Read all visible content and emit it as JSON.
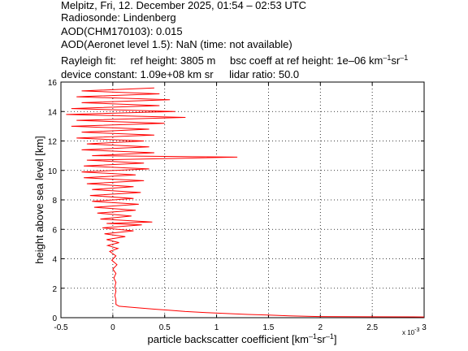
{
  "header": {
    "line1": "Melpitz, Fri, 12. December 2025, 01:54 – 02:53 UTC",
    "line2": "Radiosonde: Lindenberg",
    "line3": "AOD(CHM170103): 0.015",
    "line4": "AOD(Aeronet level 1.5): NaN   (time: not available)",
    "rayleigh_label": "Rayleigh fit:",
    "ref_height": "ref height: 3805 m",
    "bsc_coeff_prefix": "bsc coeff at ref height: 1e–06 km",
    "bsc_unit_sup1": "–1",
    "bsc_unit_mid": "sr",
    "bsc_unit_sup2": "–1",
    "device_constant": "device constant: 1.09e+08 km sr",
    "lidar_ratio": "lidar ratio: 50.0"
  },
  "chart_data": {
    "type": "line",
    "xlabel_main": "particle backscatter coefficient [km",
    "xlabel_sup1": "–1",
    "xlabel_mid": "sr",
    "xlabel_sup2": "–1",
    "xlabel_end": "]",
    "ylabel": "height above sea level [km]",
    "x_multiplier": "x 10",
    "x_multiplier_exp": "-3",
    "xlim": [
      -0.5,
      3
    ],
    "ylim": [
      0,
      16
    ],
    "x_tick_labels": [
      "-0.5",
      "0",
      "0.5",
      "1",
      "1.5",
      "2",
      "2.5",
      "3"
    ],
    "y_tick_labels": [
      "0",
      "2",
      "4",
      "6",
      "8",
      "10",
      "12",
      "14",
      "16"
    ],
    "grid": true,
    "series": [
      {
        "color": "#ff0000",
        "units": "x in 1e-3 km^-1 sr^-1, y in km",
        "points": [
          [
            3.0,
            0.05
          ],
          [
            2.5,
            0.06
          ],
          [
            2.0,
            0.08
          ],
          [
            1.7,
            0.12
          ],
          [
            1.5,
            0.18
          ],
          [
            1.3,
            0.22
          ],
          [
            1.1,
            0.28
          ],
          [
            0.9,
            0.34
          ],
          [
            0.7,
            0.42
          ],
          [
            0.55,
            0.5
          ],
          [
            0.4,
            0.58
          ],
          [
            0.28,
            0.65
          ],
          [
            0.15,
            0.72
          ],
          [
            0.06,
            0.78
          ],
          [
            0.03,
            0.9
          ],
          [
            0.03,
            1.2
          ],
          [
            0.02,
            1.5
          ],
          [
            0.03,
            1.8
          ],
          [
            0.02,
            2.1
          ],
          [
            0.03,
            2.4
          ],
          [
            0.01,
            2.7
          ],
          [
            0.03,
            3.0
          ],
          [
            0.0,
            3.3
          ],
          [
            0.04,
            3.6
          ],
          [
            -0.01,
            3.9
          ],
          [
            0.03,
            4.2
          ],
          [
            -0.03,
            4.5
          ],
          [
            0.05,
            4.7
          ],
          [
            -0.05,
            4.9
          ],
          [
            0.06,
            5.1
          ],
          [
            -0.06,
            5.3
          ],
          [
            0.12,
            5.5
          ],
          [
            -0.08,
            5.7
          ],
          [
            0.2,
            5.9
          ],
          [
            -0.1,
            6.1
          ],
          [
            0.28,
            6.3
          ],
          [
            -0.06,
            6.4
          ],
          [
            0.38,
            6.5
          ],
          [
            -0.12,
            6.7
          ],
          [
            0.18,
            6.9
          ],
          [
            -0.15,
            7.1
          ],
          [
            0.22,
            7.3
          ],
          [
            -0.18,
            7.5
          ],
          [
            0.25,
            7.7
          ],
          [
            -0.2,
            7.9
          ],
          [
            0.2,
            8.1
          ],
          [
            -0.22,
            8.3
          ],
          [
            0.27,
            8.5
          ],
          [
            -0.2,
            8.7
          ],
          [
            0.2,
            8.9
          ],
          [
            -0.25,
            9.1
          ],
          [
            0.3,
            9.3
          ],
          [
            -0.28,
            9.5
          ],
          [
            0.22,
            9.7
          ],
          [
            -0.3,
            9.9
          ],
          [
            0.35,
            10.1
          ],
          [
            -0.28,
            10.3
          ],
          [
            0.3,
            10.5
          ],
          [
            -0.25,
            10.7
          ],
          [
            1.2,
            10.9
          ],
          [
            -0.2,
            11.0
          ],
          [
            0.4,
            11.2
          ],
          [
            -0.3,
            11.4
          ],
          [
            0.35,
            11.6
          ],
          [
            -0.25,
            11.8
          ],
          [
            0.3,
            12.0
          ],
          [
            -0.35,
            12.2
          ],
          [
            0.4,
            12.4
          ],
          [
            -0.3,
            12.6
          ],
          [
            0.35,
            12.8
          ],
          [
            -0.4,
            13.0
          ],
          [
            0.5,
            13.2
          ],
          [
            -0.35,
            13.4
          ],
          [
            0.7,
            13.6
          ],
          [
            -0.45,
            13.8
          ],
          [
            0.6,
            14.0
          ],
          [
            -0.4,
            14.2
          ],
          [
            0.45,
            14.4
          ],
          [
            -0.3,
            14.6
          ],
          [
            0.55,
            14.8
          ],
          [
            -0.35,
            15.0
          ],
          [
            0.45,
            15.2
          ],
          [
            -0.3,
            15.4
          ],
          [
            0.4,
            15.6
          ]
        ]
      }
    ]
  }
}
